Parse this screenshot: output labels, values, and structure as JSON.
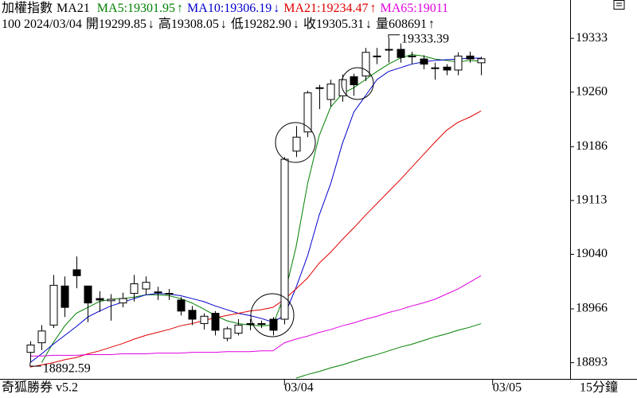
{
  "header": {
    "title": "加權指數",
    "indicator": "MA21",
    "readouts": [
      {
        "text": "MA5:19301.95",
        "arrow": "↑",
        "color": "#008000"
      },
      {
        "text": "MA10:19306.19",
        "arrow": "↓",
        "color": "#0000cc"
      },
      {
        "text": "MA21:19234.47",
        "arrow": "↑",
        "color": "#e00000"
      },
      {
        "text": "MA65:19011",
        "arrow": "",
        "color": "#e000e0"
      }
    ],
    "quote": [
      {
        "text": "100 2024/03/04",
        "arrow": ""
      },
      {
        "text": "開19299.85",
        "arrow": "↓"
      },
      {
        "text": "高19308.05",
        "arrow": "↓"
      },
      {
        "text": "低19282.90",
        "arrow": "↓"
      },
      {
        "text": "收19305.31",
        "arrow": "↓"
      },
      {
        "text": "量608691",
        "arrow": "↑"
      }
    ]
  },
  "chart_data": {
    "type": "candlestick",
    "up_color": "#ffffff",
    "down_color": "#000000",
    "outline_color": "#000000",
    "open": [
      18907,
      18920,
      18944,
      18997,
      19019,
      18997,
      18980,
      18977,
      18974,
      18987,
      18993,
      18989,
      18987,
      18978,
      18964,
      18946,
      18960,
      18926,
      18933,
      18946,
      18946,
      18952,
      18952,
      19180,
      19206,
      19265,
      19250,
      19255,
      19281,
      19282,
      19309,
      19318,
      19318,
      19309,
      19305,
      19293,
      19294,
      19290,
      19309,
      19299.85
    ],
    "high": [
      18922,
      18944,
      19012,
      19010,
      19037,
      18997,
      18990,
      18986,
      18988,
      19012,
      19010,
      18996,
      18993,
      18982,
      18970,
      18960,
      18963,
      18942,
      18952,
      18952,
      18950,
      18955,
      19172,
      19214,
      19262,
      19270,
      19277,
      19284,
      19285,
      19320,
      19320,
      19333.39,
      19326,
      19315,
      19310,
      19300,
      19298,
      19314,
      19315,
      19308.05
    ],
    "low": [
      18892.59,
      18910,
      18940,
      18955,
      18994,
      18948,
      18962,
      18950,
      18968,
      18976,
      18985,
      18978,
      18978,
      18957,
      18944,
      18938,
      18930,
      18922,
      18930,
      18937,
      18940,
      18930,
      18945,
      19172,
      19199,
      19237,
      19240,
      19247,
      19255,
      19275,
      19298,
      19300,
      19300,
      19298,
      19291,
      19277,
      19283,
      19283,
      19300,
      19282.9
    ],
    "close": [
      18917,
      18936,
      18998,
      18968,
      19011,
      18974,
      18978,
      18979,
      18980,
      19000,
      19002,
      18988,
      18986,
      18963,
      18952,
      18956,
      18937,
      18939,
      18944,
      18946,
      18945,
      18937,
      19169,
      19199,
      19259,
      19266,
      19271,
      19277,
      19270,
      19314,
      19309,
      19318,
      19307,
      19308,
      19298,
      19293,
      19290,
      19309,
      19305,
      19305.31
    ],
    "series": [
      {
        "name": "MA5",
        "color": "#008000",
        "values": [
          null,
          18893,
          18920,
          18943,
          18960,
          18968,
          18976,
          18979,
          18980,
          18982,
          18985,
          18985,
          18984,
          18980,
          18974,
          18966,
          18957,
          18950,
          18946,
          18944,
          18943,
          18944,
          18985,
          19050,
          19136,
          19201,
          19240,
          19258,
          19266,
          19277,
          19288,
          19298,
          19306,
          19311,
          19309,
          19305,
          19303,
          19301,
          19303,
          19301.95
        ]
      },
      {
        "name": "MA10",
        "color": "#0000cc",
        "values": [
          18893,
          18905,
          18918,
          18930,
          18942,
          18955,
          18963,
          18970,
          18975,
          18980,
          18985,
          18987,
          18986,
          18984,
          18980,
          18976,
          18970,
          18965,
          18960,
          18957,
          18953,
          18948,
          18957,
          18995,
          19038,
          19093,
          19136,
          19190,
          19233,
          19255,
          19277,
          19288,
          19293,
          19298,
          19301,
          19303,
          19304,
          19305,
          19306,
          19306.19
        ]
      },
      {
        "name": "MA21",
        "color": "#e00000",
        "values": [
          18887,
          18890,
          18893,
          18897,
          18900,
          18905,
          18909,
          18914,
          18919,
          18925,
          18930,
          18934,
          18938,
          18943,
          18946,
          18950,
          18954,
          18957,
          18960,
          18963,
          18965,
          18968,
          18979,
          18993,
          19008,
          19028,
          19043,
          19060,
          19076,
          19093,
          19109,
          19125,
          19141,
          19158,
          19175,
          19192,
          19208,
          19219,
          19226,
          19234.47
        ]
      },
      {
        "name": "MA65",
        "color": "#e000e0",
        "values": [
          18902,
          18902,
          18903,
          18903,
          18903,
          18904,
          18904,
          18904,
          18905,
          18905,
          18905,
          18906,
          18906,
          18906,
          18907,
          18907,
          18907,
          18908,
          18908,
          18908,
          18909,
          18909,
          18920,
          18925,
          18929,
          18934,
          18938,
          18943,
          18947,
          18952,
          18956,
          18961,
          18965,
          18970,
          18974,
          18979,
          18986,
          18993,
          19002,
          19011
        ]
      },
      {
        "color": "#008000",
        "values": [
          null,
          null,
          null,
          null,
          null,
          null,
          null,
          null,
          null,
          null,
          null,
          null,
          null,
          null,
          null,
          null,
          null,
          null,
          null,
          null,
          null,
          null,
          null,
          18872,
          18877,
          18881,
          18886,
          18890,
          18895,
          18900,
          18904,
          18909,
          18914,
          18918,
          18923,
          18928,
          18932,
          18937,
          18941,
          18946
        ]
      }
    ],
    "xlim": [
      -2.6,
      46.7
    ],
    "xticks": [
      {
        "value": 22,
        "label": "03/04"
      },
      {
        "value": 40,
        "label": "03/05"
      }
    ],
    "ylim": [
      18871,
      19385
    ],
    "yticks": [
      18893,
      18966,
      19040,
      19113,
      19186,
      19260,
      19333
    ],
    "max_marker": 31,
    "min_marker": 0
  },
  "footer": {
    "app": "奇狐勝券 v5.2",
    "interval": "15分鐘"
  }
}
